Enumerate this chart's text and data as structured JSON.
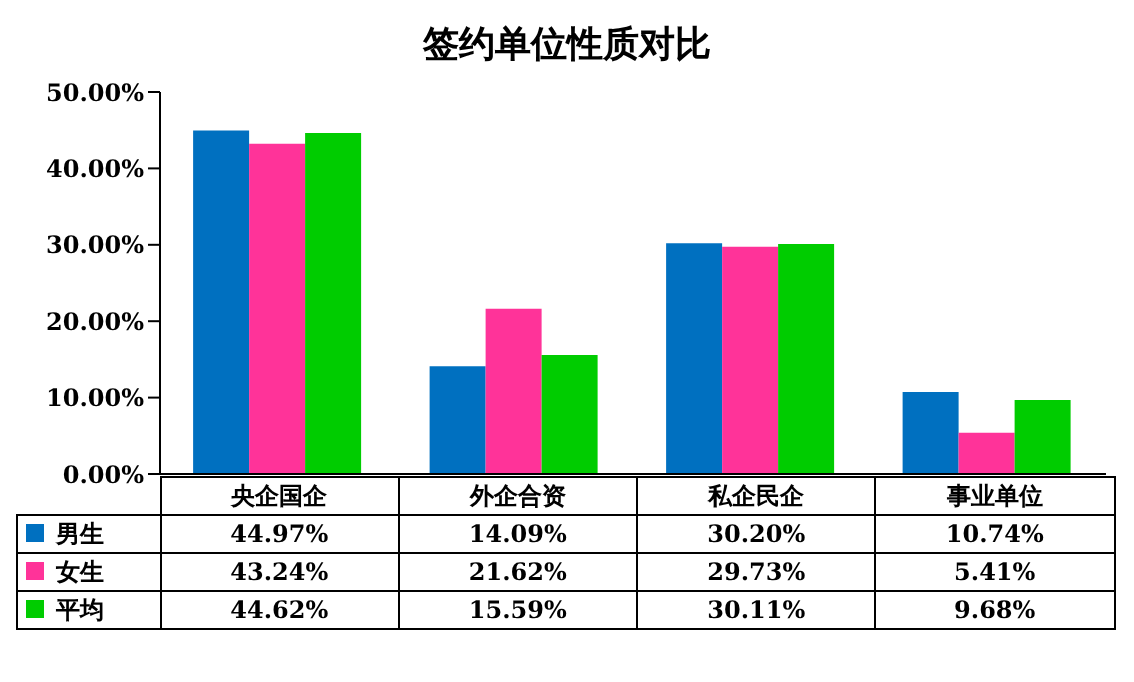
{
  "chart_data": {
    "type": "bar",
    "title": "签约单位性质对比",
    "categories": [
      "央企国企",
      "外企合资",
      "私企民企",
      "事业单位"
    ],
    "series": [
      {
        "name": "男生",
        "color": "#0070c0",
        "values": [
          44.97,
          14.09,
          30.2,
          10.74
        ],
        "value_labels": [
          "44.97%",
          "14.09%",
          "30.20%",
          "10.74%"
        ]
      },
      {
        "name": "女生",
        "color": "#ff3399",
        "values": [
          43.24,
          21.62,
          29.73,
          5.41
        ],
        "value_labels": [
          "43.24%",
          "21.62%",
          "29.73%",
          "5.41%"
        ]
      },
      {
        "name": "平均",
        "color": "#00cc00",
        "values": [
          44.62,
          15.59,
          30.11,
          9.68
        ],
        "value_labels": [
          "44.62%",
          "15.59%",
          "30.11%",
          "9.68%"
        ]
      }
    ],
    "ylim": [
      0,
      50
    ],
    "yticks": [
      {
        "value": 0,
        "label": "0.00%"
      },
      {
        "value": 10,
        "label": "10.00%"
      },
      {
        "value": 20,
        "label": "20.00%"
      },
      {
        "value": 30,
        "label": "30.00%"
      },
      {
        "value": 40,
        "label": "40.00%"
      },
      {
        "value": 50,
        "label": "50.00%"
      }
    ],
    "grid": false,
    "legend": "bottom"
  }
}
